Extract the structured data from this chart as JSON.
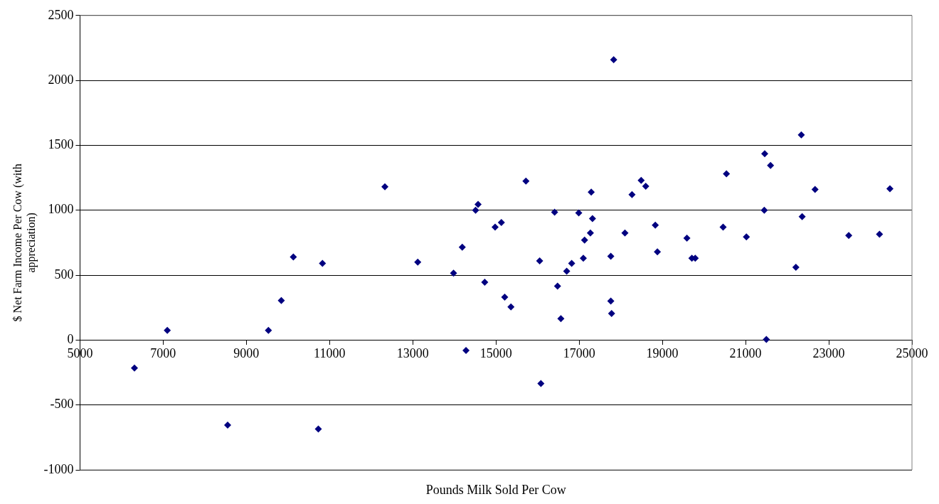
{
  "chart_data": {
    "type": "scatter",
    "xlabel": "Pounds Milk Sold Per Cow",
    "ylabel": "$ Net Farm Income Per Cow (with appreciation)",
    "xlim": [
      5000,
      25000
    ],
    "xticks": [
      5000,
      7000,
      9000,
      11000,
      13000,
      15000,
      17000,
      19000,
      21000,
      23000,
      25000
    ],
    "ylim": [
      -1000,
      2500
    ],
    "yticks": [
      -1000,
      -500,
      0,
      500,
      1000,
      1500,
      2000,
      2500
    ],
    "grid": "y",
    "legend": false,
    "marker": "diamond",
    "series": [
      {
        "color": "#000080",
        "x": [
          6310,
          7100,
          8550,
          9530,
          9840,
          10130,
          10830,
          10730,
          12330,
          13120,
          13980,
          14190,
          14280,
          14510,
          14570,
          14730,
          14980,
          15130,
          15210,
          15360,
          15720,
          16050,
          16080,
          16410,
          16480,
          16560,
          16700,
          16820,
          16990,
          17100,
          17130,
          17270,
          17290,
          17320,
          17760,
          17760,
          17780,
          17830,
          18100,
          18270,
          18490,
          18600,
          18830,
          18880,
          19590,
          19710,
          19790,
          20460,
          20540,
          21020,
          21460,
          21450,
          21500,
          21600,
          22210,
          22340,
          22360,
          22670,
          23480,
          24220,
          24470
        ],
        "values": [
          -215,
          75,
          -655,
          75,
          305,
          640,
          590,
          -685,
          1180,
          600,
          515,
          715,
          -80,
          1000,
          1045,
          445,
          870,
          905,
          330,
          255,
          1225,
          610,
          -335,
          985,
          415,
          165,
          530,
          590,
          980,
          630,
          770,
          825,
          1140,
          935,
          645,
          300,
          205,
          2160,
          825,
          1120,
          1230,
          1185,
          885,
          680,
          785,
          630,
          630,
          870,
          1280,
          795,
          1435,
          1000,
          5,
          1345,
          560,
          1580,
          950,
          1160,
          805,
          815,
          1165
        ]
      }
    ]
  }
}
